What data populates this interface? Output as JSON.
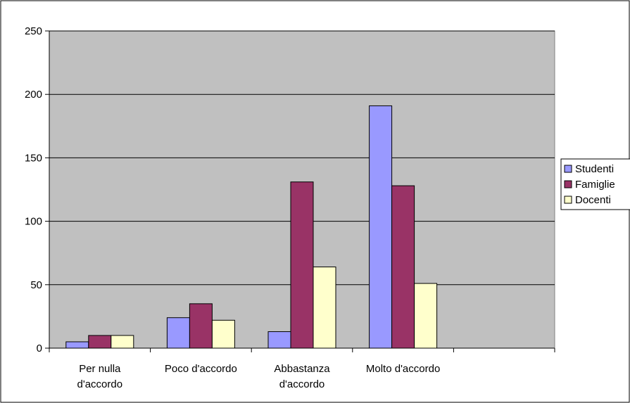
{
  "chart_data": {
    "type": "bar",
    "categories": [
      "Per nulla d'accordo",
      "Poco d'accordo",
      "Abbastanza d'accordo",
      "Molto d'accordo",
      ""
    ],
    "category_label_lines": [
      [
        "Per nulla",
        "d'accordo"
      ],
      [
        "Poco d'accordo"
      ],
      [
        "Abbastanza",
        "d'accordo"
      ],
      [
        "Molto d'accordo"
      ],
      []
    ],
    "series": [
      {
        "name": "Studenti",
        "color": "#9999ff",
        "values": [
          5,
          24,
          13,
          191,
          null
        ]
      },
      {
        "name": "Famiglie",
        "color": "#993366",
        "values": [
          10,
          35,
          131,
          128,
          null
        ]
      },
      {
        "name": "Docenti",
        "color": "#ffffcc",
        "values": [
          10,
          22,
          64,
          51,
          null
        ]
      }
    ],
    "ylim": [
      0,
      250
    ],
    "yticks": [
      0,
      50,
      100,
      150,
      200,
      250
    ],
    "grid": true,
    "plot_background": "#c0c0c0",
    "legend_position": "right",
    "title": "",
    "xlabel": "",
    "ylabel": ""
  }
}
